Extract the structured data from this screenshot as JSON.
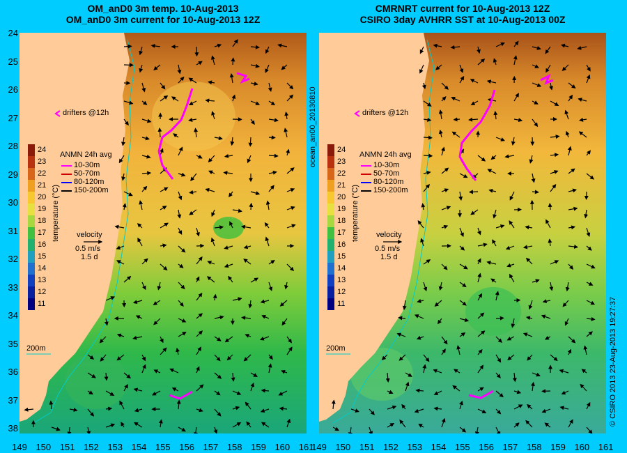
{
  "panels": [
    {
      "id": "left",
      "title_line1": "OM_anD0 3m temp. 10-Aug-2013",
      "title_line2": "OM_anD0 3m current for 10-Aug-2013 12Z"
    },
    {
      "id": "right",
      "title_line1": "CMRNRT current for 10-Aug-2013 12Z",
      "title_line2": "CSIRO 3day AVHRR SST at 10-Aug-2013 00Z"
    }
  ],
  "axes": {
    "lat_labels": [
      "24",
      "25",
      "26",
      "27",
      "28",
      "29",
      "30",
      "31",
      "32",
      "33",
      "34",
      "35",
      "36",
      "37",
      "38"
    ],
    "lon_labels": [
      "149",
      "150",
      "151",
      "152",
      "153",
      "154",
      "155",
      "156",
      "157",
      "158",
      "159",
      "160",
      "161"
    ]
  },
  "legend": {
    "drifters_label": "drifters @12h",
    "anmn_title": "ANMN 24h avg",
    "depths": [
      {
        "label": "10-30m",
        "color": "#ff00ff"
      },
      {
        "label": "50-70m",
        "color": "#cc0000"
      },
      {
        "label": "80-120m",
        "color": "#0000ff"
      },
      {
        "label": "150-200m",
        "color": "#000000"
      }
    ],
    "velocity_label": "velocity",
    "velocity_scale": "0.5 m/s",
    "velocity_time": "1.5 d",
    "isobath_label": "200m",
    "colorbar_ticks": [
      "24",
      "23",
      "22",
      "21",
      "20",
      "19",
      "18",
      "17",
      "16",
      "15",
      "14",
      "13",
      "12",
      "11"
    ],
    "colorbar_label": "temperature (°C)"
  },
  "side_labels": {
    "model": "ocean_an00_20130810",
    "credit": "© CSIRO 2013   23-Aug-2013 19:27:37"
  },
  "colors": {
    "background": "#00ccff",
    "land": "#ffcc99",
    "drifter": "#ff00ff",
    "isobath": "#00cccc"
  }
}
